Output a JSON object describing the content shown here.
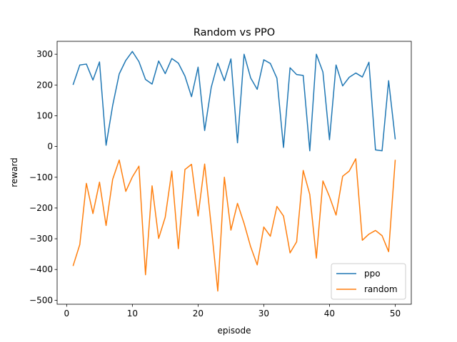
{
  "chart_data": {
    "type": "line",
    "title": "Random vs PPO",
    "xlabel": "episode",
    "ylabel": "reward",
    "xlim": [
      -1.45,
      52.45
    ],
    "ylim": [
      -513,
      342
    ],
    "xticks": [
      0,
      10,
      20,
      30,
      40,
      50
    ],
    "yticks": [
      -500,
      -400,
      -300,
      -200,
      -100,
      0,
      100,
      200,
      300
    ],
    "grid": false,
    "legend_position": "lower right",
    "x": [
      1,
      2,
      3,
      4,
      5,
      6,
      7,
      8,
      9,
      10,
      11,
      12,
      13,
      14,
      15,
      16,
      17,
      18,
      19,
      20,
      21,
      22,
      23,
      24,
      25,
      26,
      27,
      28,
      29,
      30,
      31,
      32,
      33,
      34,
      35,
      36,
      37,
      38,
      39,
      40,
      41,
      42,
      43,
      44,
      45,
      46,
      47,
      48,
      49,
      50
    ],
    "series": [
      {
        "name": "ppo",
        "color": "#1f77b4",
        "values": [
          202,
          265,
          268,
          216,
          275,
          4,
          133,
          236,
          280,
          309,
          276,
          218,
          203,
          278,
          237,
          286,
          271,
          229,
          162,
          258,
          52,
          192,
          271,
          214,
          285,
          12,
          300,
          223,
          186,
          282,
          270,
          222,
          -3,
          256,
          234,
          231,
          -14,
          300,
          242,
          22,
          265,
          197,
          225,
          239,
          226,
          274,
          -11,
          -14,
          214,
          25
        ]
      },
      {
        "name": "random",
        "color": "#ff7f0e",
        "values": [
          -387,
          -319,
          -120,
          -218,
          -116,
          -257,
          -107,
          -44,
          -146,
          -99,
          -64,
          -417,
          -128,
          -299,
          -230,
          -80,
          -332,
          -75,
          -58,
          -226,
          -57,
          -258,
          -470,
          -100,
          -272,
          -185,
          -250,
          -326,
          -385,
          -262,
          -292,
          -195,
          -226,
          -346,
          -310,
          -78,
          -156,
          -363,
          -112,
          -163,
          -223,
          -97,
          -80,
          -40,
          -305,
          -285,
          -273,
          -290,
          -342,
          -45
        ]
      }
    ]
  }
}
